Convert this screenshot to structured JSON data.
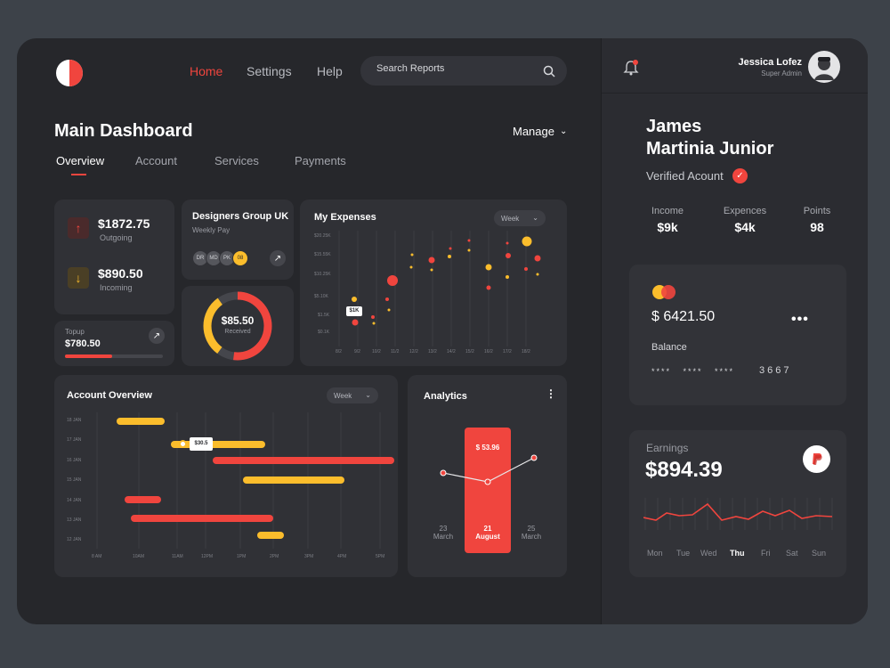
{
  "nav": {
    "home": "Home",
    "settings": "Settings",
    "help": "Help"
  },
  "search": {
    "placeholder": "Search Reports"
  },
  "page": {
    "title": "Main Dashboard",
    "manage": "Manage"
  },
  "tabs": [
    "Overview",
    "Account",
    "Services",
    "Payments"
  ],
  "outgoing": {
    "amount": "$1872.75",
    "label": "Outgoing"
  },
  "incoming": {
    "amount": "$890.50",
    "label": "Incoming"
  },
  "topup": {
    "label": "Topup",
    "amount": "$780.50",
    "progress": 0.48
  },
  "designers": {
    "title": "Designers Group UK",
    "subtitle": "Weekly Pay",
    "avatars": [
      "DR",
      "MD",
      "PK",
      "08"
    ]
  },
  "donut": {
    "amount": "$85.50",
    "label": "Received",
    "red_fraction": 0.52,
    "yellow_fraction": 0.3
  },
  "expenses": {
    "title": "My Expenses",
    "period": "Week",
    "tooltip": "$1K",
    "y_ticks": [
      "$20.25K",
      "$15.55K",
      "$10.25K",
      "$5.10K",
      "$1.5K",
      "$0.1K"
    ],
    "x_ticks": [
      "8/2",
      "9/2",
      "10/2",
      "11/2",
      "12/2",
      "13/2",
      "14/2",
      "15/2",
      "16/2",
      "17/2",
      "18/2"
    ]
  },
  "account_overview": {
    "title": "Account Overview",
    "period": "Week",
    "tooltip": "$30.5",
    "y_ticks": [
      "18 JAN",
      "17 JAN",
      "16 JAN",
      "15 JAN",
      "14 JAN",
      "13 JAN",
      "12 JAN"
    ],
    "x_ticks": [
      "8 AM",
      "10AM",
      "11AM",
      "12PM",
      "1PM",
      "2PM",
      "3PM",
      "4PM",
      "5PM"
    ]
  },
  "analytics": {
    "title": "Analytics",
    "value": "$ 53.96",
    "points": [
      {
        "day": "23",
        "month": "March"
      },
      {
        "day": "21",
        "month": "August"
      },
      {
        "day": "25",
        "month": "March"
      }
    ]
  },
  "user": {
    "name": "Jessica Lofez",
    "role": "Super Admin"
  },
  "profile": {
    "first": "James",
    "last": "Martinia Junior",
    "verified": "Verified Acount",
    "stats": [
      {
        "label": "Income",
        "value": "$9k"
      },
      {
        "label": "Expences",
        "value": "$4k"
      },
      {
        "label": "Points",
        "value": "98"
      }
    ]
  },
  "card": {
    "amount": "$ 6421.50",
    "label": "Balance",
    "masked": "****   ****   ****",
    "last4": "3667"
  },
  "earnings": {
    "label": "Earnings",
    "amount": "$894.39",
    "days": [
      "Mon",
      "Tue",
      "Wed",
      "Thu",
      "Fri",
      "Sat",
      "Sun"
    ],
    "active_day": "Thu"
  },
  "colors": {
    "red": "#f0453e",
    "yellow": "#fbbd2c",
    "bg": "#26272b",
    "card": "#303136"
  }
}
